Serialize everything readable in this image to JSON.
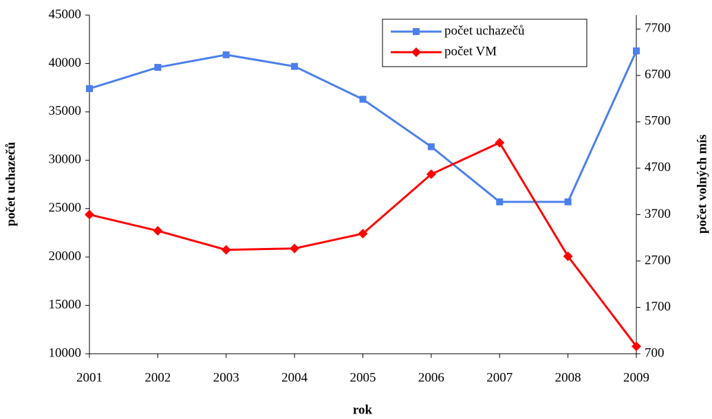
{
  "chart_data": {
    "type": "line",
    "x_label": "rok",
    "y_label": "počet uchazečů",
    "y2_label": "počet volných mís",
    "categories": [
      "2001",
      "2002",
      "2003",
      "2004",
      "2005",
      "2006",
      "2007",
      "2008",
      "2009"
    ],
    "series": [
      {
        "name": "počet uchazečů",
        "color": "#4a7fec",
        "marker": "square",
        "values": [
          37400,
          39600,
          40900,
          39700,
          36300,
          31400,
          25700,
          25700,
          41300
        ]
      },
      {
        "name": "počet VM",
        "color": "#ff0000",
        "marker": "diamond",
        "axis": "y2",
        "values": [
          3700,
          3350,
          2940,
          2970,
          3290,
          4570,
          5250,
          2800,
          860
        ]
      }
    ],
    "ylim": [
      10000,
      45000
    ],
    "yticks": [
      10000,
      15000,
      20000,
      25000,
      30000,
      35000,
      40000,
      45000
    ],
    "y2lim": [
      700,
      8000
    ],
    "y2ticks": [
      700,
      1700,
      2700,
      3700,
      4700,
      5700,
      6700,
      7700
    ],
    "legend": "upper right"
  }
}
